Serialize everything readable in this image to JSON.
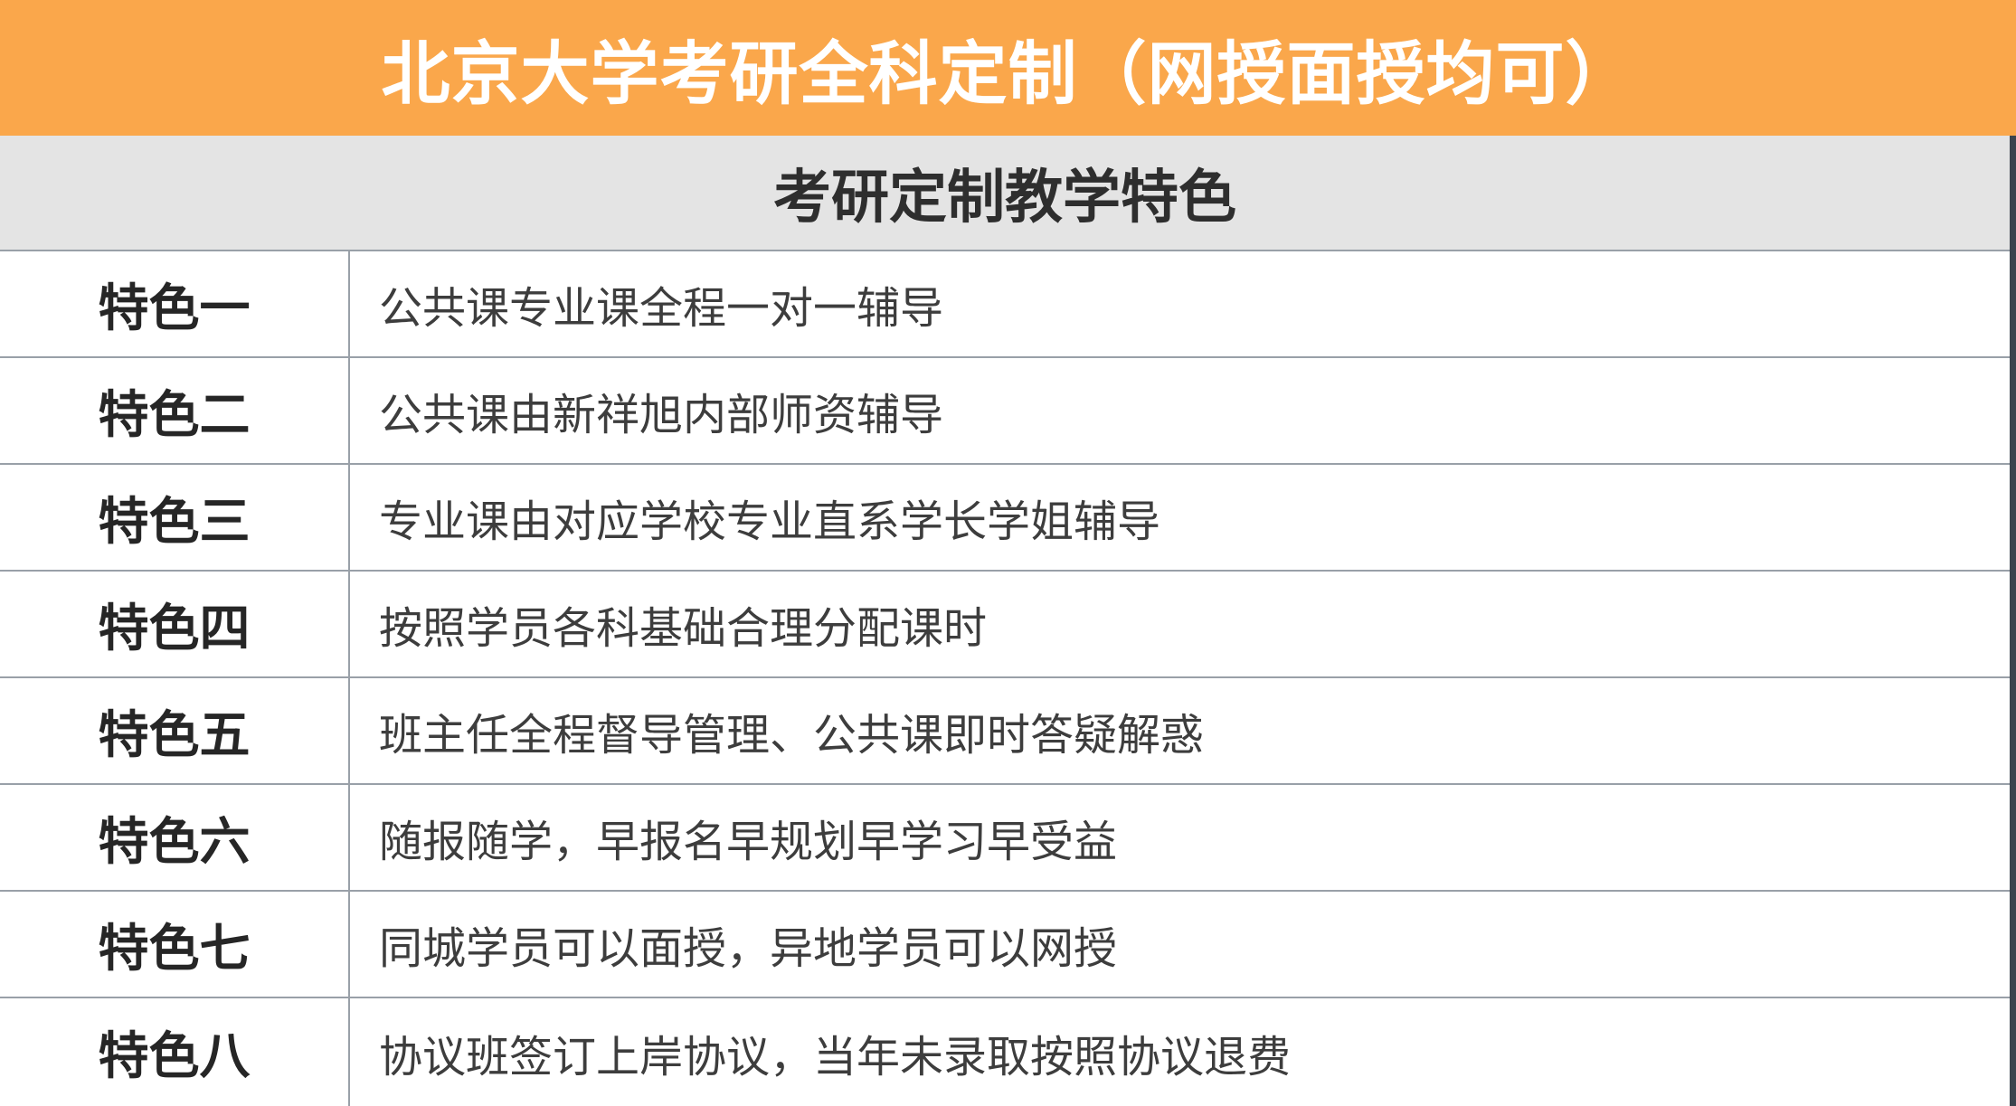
{
  "colors": {
    "banner_bg": "#FAA74B",
    "banner_text": "#FFFFFF",
    "subtitle_bg": "#E4E4E4",
    "subtitle_text": "#2E2E2E",
    "grid_line": "#99A0A8",
    "label_text": "#262626",
    "desc_text": "#3D3D3D",
    "page_edge_bg": "#3B434E",
    "row_bg": "#FFFFFF"
  },
  "banner": {
    "title": "北京大学考研全科定制（网授面授均可）"
  },
  "table": {
    "subtitle": "考研定制教学特色",
    "rows": [
      {
        "label": "特色一",
        "desc": "公共课专业课全程一对一辅导"
      },
      {
        "label": "特色二",
        "desc": "公共课由新祥旭内部师资辅导"
      },
      {
        "label": "特色三",
        "desc": "专业课由对应学校专业直系学长学姐辅导"
      },
      {
        "label": "特色四",
        "desc": "按照学员各科基础合理分配课时"
      },
      {
        "label": "特色五",
        "desc": "班主任全程督导管理、公共课即时答疑解惑"
      },
      {
        "label": "特色六",
        "desc": "随报随学，早报名早规划早学习早受益"
      },
      {
        "label": "特色七",
        "desc": "同城学员可以面授，异地学员可以网授"
      },
      {
        "label": "特色八",
        "desc": "协议班签订上岸协议，当年未录取按照协议退费"
      }
    ]
  }
}
